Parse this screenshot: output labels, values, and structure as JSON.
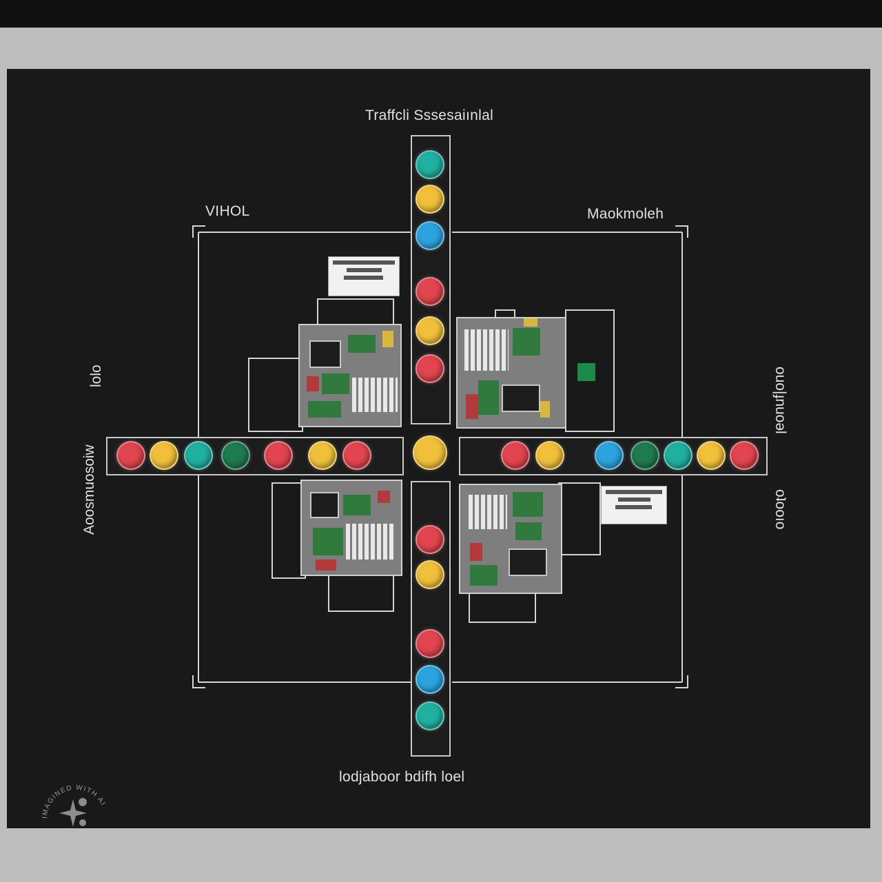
{
  "labels": {
    "title": "Traffcli Sssesaiınlal",
    "top_left": "VIHOL",
    "top_right": "Maokmoleh",
    "bottom": "lodjaboor bdifh loel",
    "left_upper": "lolo",
    "left_lower": "Aoosmuosoiw",
    "right_upper": "ouo|ɟnuoəl",
    "right_lower": "oʇooıo"
  },
  "watermark": "IMAGINED WITH AI",
  "colors": {
    "frame": "#1a1919",
    "red": "#e1454f",
    "yellow": "#f0c03a",
    "teal": "#1fb0a0",
    "blue": "#2ba3de",
    "dark_green": "#1e7a4f"
  },
  "lights": {
    "vertical_top": [
      "teal",
      "yellow",
      "blue",
      "red",
      "yellow",
      "red"
    ],
    "vertical_bottom": [
      "red",
      "yellow",
      "red",
      "blue",
      "teal"
    ],
    "horizontal_left": [
      "red",
      "yellow",
      "teal",
      "dark_green",
      "red",
      "yellow",
      "red"
    ],
    "center": "yellow",
    "horizontal_right": [
      "red",
      "yellow",
      "blue",
      "dark_green",
      "teal",
      "yellow",
      "red"
    ]
  }
}
